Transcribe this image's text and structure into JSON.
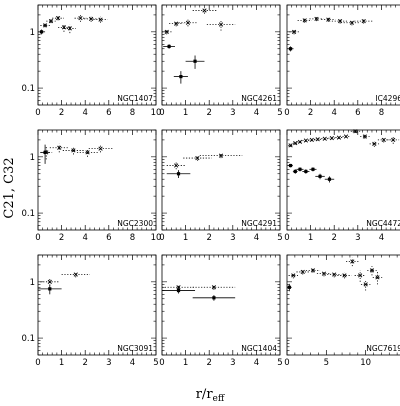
{
  "figure": {
    "ylabel": "C21, C32",
    "xlabel_base": "r/r",
    "xlabel_sub": "eff"
  },
  "chart_data": [
    {
      "type": "scatter",
      "label": "NGC1407",
      "xlim": [
        0,
        10
      ],
      "ylim": [
        0.05,
        3
      ],
      "yscale": "log",
      "xticks": [
        0,
        2,
        4,
        6,
        8,
        10
      ],
      "yticks": [
        0.1,
        1
      ],
      "ytick_labels": [
        "0.1",
        "1"
      ],
      "series": [
        {
          "style": "solid",
          "points": [
            {
              "x": 0.3,
              "y": 1.0,
              "xerr": 0.3,
              "yerr": 0.1
            }
          ]
        },
        {
          "style": "dotted",
          "points": [
            {
              "x": 0.6,
              "y": 1.3,
              "xerr": 0.4,
              "yerr": 0.1
            },
            {
              "x": 1.1,
              "y": 1.55,
              "xerr": 0.4,
              "yerr": 0.12
            },
            {
              "x": 1.7,
              "y": 1.75,
              "xerr": 0.5,
              "yerr": 0.15
            },
            {
              "x": 2.2,
              "y": 1.2,
              "xerr": 0.5,
              "yerr": 0.2
            },
            {
              "x": 2.7,
              "y": 1.15,
              "xerr": 0.5,
              "yerr": 0.2
            },
            {
              "x": 3.6,
              "y": 1.75,
              "xerr": 0.5,
              "yerr": 0.25
            },
            {
              "x": 4.5,
              "y": 1.7,
              "xerr": 0.6,
              "yerr": 0.2
            },
            {
              "x": 5.3,
              "y": 1.65,
              "xerr": 0.6,
              "yerr": 0.2
            }
          ]
        }
      ]
    },
    {
      "type": "scatter",
      "label": "NGC4261",
      "xlim": [
        0,
        5
      ],
      "ylim": [
        0.05,
        3
      ],
      "yscale": "log",
      "xticks": [
        0,
        1,
        2,
        3,
        4,
        5
      ],
      "yticks": [
        0.1,
        1
      ],
      "ytick_labels": [
        "",
        ""
      ],
      "series": [
        {
          "style": "solid",
          "points": [
            {
              "x": 0.3,
              "y": 0.55,
              "xerr": 0.25,
              "yerr": 0.05
            },
            {
              "x": 0.8,
              "y": 0.16,
              "xerr": 0.3,
              "yerr": 0.04
            },
            {
              "x": 1.4,
              "y": 0.3,
              "xerr": 0.4,
              "yerr": 0.08
            }
          ]
        },
        {
          "style": "dotted",
          "points": [
            {
              "x": 0.2,
              "y": 1.0,
              "xerr": 0.2,
              "yerr": 0.1
            },
            {
              "x": 0.6,
              "y": 1.4,
              "xerr": 0.3,
              "yerr": 0.15
            },
            {
              "x": 1.1,
              "y": 1.45,
              "xerr": 0.4,
              "yerr": 0.2
            },
            {
              "x": 1.8,
              "y": 2.4,
              "xerr": 0.5,
              "yerr": 0.3
            },
            {
              "x": 2.5,
              "y": 1.35,
              "xerr": 0.6,
              "yerr": 0.3
            }
          ]
        }
      ]
    },
    {
      "type": "scatter",
      "label": "IC4296",
      "xlim": [
        0,
        10
      ],
      "ylim": [
        0.05,
        3
      ],
      "yscale": "log",
      "xticks": [
        0,
        2,
        4,
        6,
        8,
        10
      ],
      "yticks": [
        0.1,
        1
      ],
      "ytick_labels": [
        "",
        ""
      ],
      "series": [
        {
          "style": "solid",
          "points": [
            {
              "x": 0.3,
              "y": 0.5,
              "xerr": 0.25,
              "yerr": 0.05
            }
          ]
        },
        {
          "style": "dotted",
          "points": [
            {
              "x": 0.6,
              "y": 1.0,
              "xerr": 0.4,
              "yerr": 0.1
            },
            {
              "x": 1.5,
              "y": 1.6,
              "xerr": 0.6,
              "yerr": 0.15
            },
            {
              "x": 2.5,
              "y": 1.7,
              "xerr": 0.6,
              "yerr": 0.15
            },
            {
              "x": 3.5,
              "y": 1.65,
              "xerr": 0.6,
              "yerr": 0.15
            },
            {
              "x": 4.5,
              "y": 1.55,
              "xerr": 0.7,
              "yerr": 0.15
            },
            {
              "x": 5.5,
              "y": 1.45,
              "xerr": 0.7,
              "yerr": 0.15
            },
            {
              "x": 6.5,
              "y": 1.55,
              "xerr": 0.8,
              "yerr": 0.15
            }
          ]
        }
      ]
    },
    {
      "type": "scatter",
      "label": "NGC2300",
      "xlim": [
        0,
        10
      ],
      "ylim": [
        0.05,
        3
      ],
      "yscale": "log",
      "xticks": [
        0,
        2,
        4,
        6,
        8,
        10
      ],
      "yticks": [
        0.1,
        1
      ],
      "ytick_labels": [
        "0.1",
        "1"
      ],
      "series": [
        {
          "style": "solid",
          "points": [
            {
              "x": 0.6,
              "y": 1.2,
              "xerr": 0.4,
              "yerr": 0.45
            }
          ]
        },
        {
          "style": "dotted",
          "points": [
            {
              "x": 0.7,
              "y": 1.2,
              "xerr": 0.5,
              "yerr": 0.3
            },
            {
              "x": 1.8,
              "y": 1.45,
              "xerr": 0.8,
              "yerr": 0.25
            },
            {
              "x": 3.0,
              "y": 1.3,
              "xerr": 0.9,
              "yerr": 0.2
            },
            {
              "x": 4.2,
              "y": 1.2,
              "xerr": 0.9,
              "yerr": 0.2
            },
            {
              "x": 5.3,
              "y": 1.4,
              "xerr": 1.0,
              "yerr": 0.2
            }
          ]
        }
      ]
    },
    {
      "type": "scatter",
      "label": "NGC4291",
      "xlim": [
        0,
        5
      ],
      "ylim": [
        0.05,
        3
      ],
      "yscale": "log",
      "xticks": [
        0,
        1,
        2,
        3,
        4,
        5
      ],
      "yticks": [
        0.1,
        1
      ],
      "ytick_labels": [
        "",
        ""
      ],
      "series": [
        {
          "style": "solid",
          "points": [
            {
              "x": 0.7,
              "y": 0.5,
              "xerr": 0.5,
              "yerr": 0.08
            }
          ]
        },
        {
          "style": "dotted",
          "points": [
            {
              "x": 0.6,
              "y": 0.7,
              "xerr": 0.4,
              "yerr": 0.1
            },
            {
              "x": 1.5,
              "y": 0.95,
              "xerr": 0.6,
              "yerr": 0.1
            },
            {
              "x": 2.5,
              "y": 1.05,
              "xerr": 0.9,
              "yerr": 0.1
            }
          ]
        }
      ]
    },
    {
      "type": "scatter",
      "label": "NGC4472",
      "xlim": [
        0,
        5
      ],
      "ylim": [
        0.05,
        3
      ],
      "yscale": "log",
      "xticks": [
        0,
        1,
        2,
        3,
        4,
        5
      ],
      "yticks": [
        0.1,
        1
      ],
      "ytick_labels": [
        "",
        ""
      ],
      "series": [
        {
          "style": "solid",
          "points": [
            {
              "x": 0.15,
              "y": 0.7,
              "xerr": 0.1,
              "yerr": 0.05
            },
            {
              "x": 0.35,
              "y": 0.55,
              "xerr": 0.1,
              "yerr": 0.05
            },
            {
              "x": 0.55,
              "y": 0.6,
              "xerr": 0.15,
              "yerr": 0.05
            },
            {
              "x": 0.8,
              "y": 0.55,
              "xerr": 0.15,
              "yerr": 0.05
            },
            {
              "x": 1.1,
              "y": 0.6,
              "xerr": 0.15,
              "yerr": 0.05
            },
            {
              "x": 1.4,
              "y": 0.45,
              "xerr": 0.2,
              "yerr": 0.05
            },
            {
              "x": 1.8,
              "y": 0.4,
              "xerr": 0.2,
              "yerr": 0.05
            }
          ]
        },
        {
          "style": "dotted",
          "points": [
            {
              "x": 0.15,
              "y": 1.6,
              "xerr": 0.1,
              "yerr": 0.1
            },
            {
              "x": 0.35,
              "y": 1.75,
              "xerr": 0.1,
              "yerr": 0.1
            },
            {
              "x": 0.55,
              "y": 1.85,
              "xerr": 0.12,
              "yerr": 0.1
            },
            {
              "x": 0.8,
              "y": 1.95,
              "xerr": 0.15,
              "yerr": 0.1
            },
            {
              "x": 1.05,
              "y": 2.0,
              "xerr": 0.15,
              "yerr": 0.1
            },
            {
              "x": 1.3,
              "y": 2.05,
              "xerr": 0.15,
              "yerr": 0.1
            },
            {
              "x": 1.6,
              "y": 2.1,
              "xerr": 0.15,
              "yerr": 0.1
            },
            {
              "x": 1.9,
              "y": 2.15,
              "xerr": 0.15,
              "yerr": 0.1
            },
            {
              "x": 2.2,
              "y": 2.2,
              "xerr": 0.15,
              "yerr": 0.1
            },
            {
              "x": 2.5,
              "y": 2.3,
              "xerr": 0.15,
              "yerr": 0.1
            },
            {
              "x": 2.9,
              "y": 2.85,
              "xerr": 0.2,
              "yerr": 0.2
            },
            {
              "x": 3.3,
              "y": 2.3,
              "xerr": 0.2,
              "yerr": 0.2
            },
            {
              "x": 3.7,
              "y": 1.7,
              "xerr": 0.2,
              "yerr": 0.2
            },
            {
              "x": 4.1,
              "y": 2.0,
              "xerr": 0.25,
              "yerr": 0.2
            },
            {
              "x": 4.5,
              "y": 2.0,
              "xerr": 0.25,
              "yerr": 0.3
            }
          ]
        }
      ]
    },
    {
      "type": "scatter",
      "label": "NGC3091",
      "xlim": [
        0,
        5
      ],
      "ylim": [
        0.05,
        3
      ],
      "yscale": "log",
      "xticks": [
        0,
        1,
        2,
        3,
        4,
        5
      ],
      "yticks": [
        0.1,
        1
      ],
      "ytick_labels": [
        "0.1",
        "1"
      ],
      "series": [
        {
          "style": "solid",
          "points": [
            {
              "x": 0.5,
              "y": 0.75,
              "xerr": 0.5,
              "yerr": 0.15
            }
          ]
        },
        {
          "style": "dotted",
          "points": [
            {
              "x": 0.5,
              "y": 1.0,
              "xerr": 0.4,
              "yerr": 0.15
            },
            {
              "x": 1.6,
              "y": 1.35,
              "xerr": 0.6,
              "yerr": 0.15
            }
          ]
        }
      ]
    },
    {
      "type": "scatter",
      "label": "NGC1404",
      "xlim": [
        0,
        5
      ],
      "ylim": [
        0.05,
        3
      ],
      "yscale": "log",
      "xticks": [
        0,
        1,
        2,
        3,
        4,
        5
      ],
      "yticks": [
        0.1,
        1
      ],
      "ytick_labels": [
        "",
        ""
      ],
      "series": [
        {
          "style": "solid",
          "points": [
            {
              "x": 0.7,
              "y": 0.7,
              "xerr": 0.7,
              "yerr": 0.08
            },
            {
              "x": 2.2,
              "y": 0.52,
              "xerr": 0.9,
              "yerr": 0.06
            }
          ]
        },
        {
          "style": "dotted",
          "points": [
            {
              "x": 0.7,
              "y": 0.8,
              "xerr": 0.7,
              "yerr": 0.08
            },
            {
              "x": 2.2,
              "y": 0.8,
              "xerr": 0.9,
              "yerr": 0.08
            }
          ]
        }
      ]
    },
    {
      "type": "scatter",
      "label": "NGC7619",
      "xlim": [
        0,
        15
      ],
      "ylim": [
        0.05,
        3
      ],
      "yscale": "log",
      "xticks": [
        0,
        5,
        10,
        15
      ],
      "yticks": [
        0.1,
        1
      ],
      "ytick_labels": [
        "",
        ""
      ],
      "series": [
        {
          "style": "solid",
          "points": [
            {
              "x": 0.3,
              "y": 0.8,
              "xerr": 0.3,
              "yerr": 0.12
            }
          ]
        },
        {
          "style": "dotted",
          "points": [
            {
              "x": 0.8,
              "y": 1.3,
              "xerr": 0.6,
              "yerr": 0.15
            },
            {
              "x": 2.0,
              "y": 1.5,
              "xerr": 0.8,
              "yerr": 0.15
            },
            {
              "x": 3.3,
              "y": 1.6,
              "xerr": 0.9,
              "yerr": 0.15
            },
            {
              "x": 4.7,
              "y": 1.4,
              "xerr": 0.9,
              "yerr": 0.15
            },
            {
              "x": 6.0,
              "y": 1.35,
              "xerr": 0.9,
              "yerr": 0.15
            },
            {
              "x": 7.3,
              "y": 1.3,
              "xerr": 0.9,
              "yerr": 0.15
            },
            {
              "x": 8.3,
              "y": 2.3,
              "xerr": 0.8,
              "yerr": 0.4
            },
            {
              "x": 9.3,
              "y": 1.3,
              "xerr": 0.7,
              "yerr": 0.3
            },
            {
              "x": 10.0,
              "y": 0.9,
              "xerr": 0.6,
              "yerr": 0.2
            },
            {
              "x": 10.8,
              "y": 1.6,
              "xerr": 0.6,
              "yerr": 0.3
            },
            {
              "x": 11.5,
              "y": 1.2,
              "xerr": 0.6,
              "yerr": 0.3
            }
          ]
        }
      ]
    }
  ]
}
